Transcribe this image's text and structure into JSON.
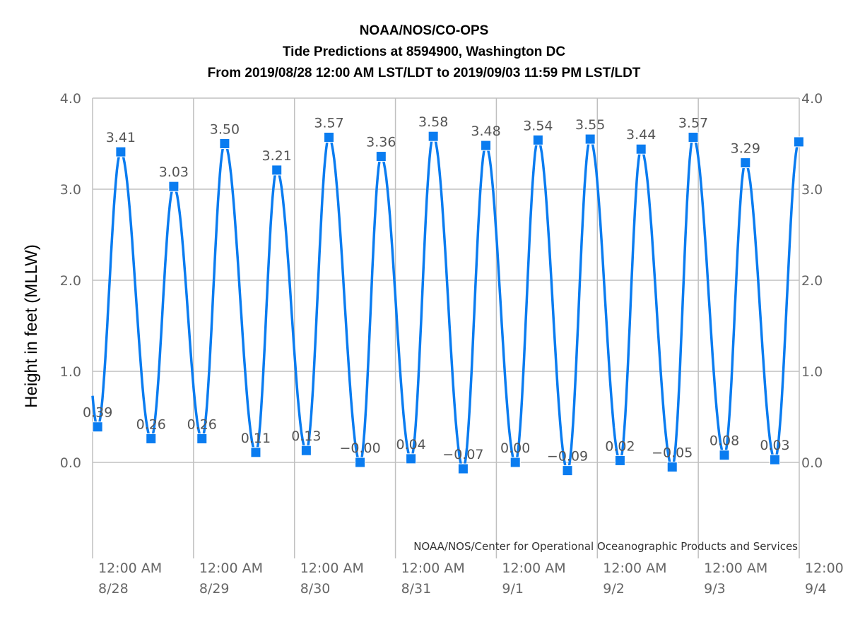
{
  "chart_data": {
    "type": "line",
    "title_lines": [
      "NOAA/NOS/CO-OPS",
      "Tide Predictions at 8594900, Washington DC",
      "From 2019/08/28 12:00 AM LST/LDT to 2019/09/03 11:59 PM LST/LDT"
    ],
    "ylabel": "Height in feet (MLLW)",
    "credit": "NOAA/NOS/Center for Operational Oceanographic Products and Services",
    "ylim": [
      -1.0,
      4.0
    ],
    "xlim": [
      "2019-08-28 00:00",
      "2019-09-04 00:00"
    ],
    "y_ticks": [
      "4.0",
      "3.0",
      "2.0",
      "1.0",
      "0.0"
    ],
    "x_ticks": [
      {
        "time": "12:00 AM",
        "date": "8/28"
      },
      {
        "time": "12:00 AM",
        "date": "8/29"
      },
      {
        "time": "12:00 AM",
        "date": "8/30"
      },
      {
        "time": "12:00 AM",
        "date": "8/31"
      },
      {
        "time": "12:00 AM",
        "date": "9/1"
      },
      {
        "time": "12:00 AM",
        "date": "9/2"
      },
      {
        "time": "12:00 AM",
        "date": "9/3"
      },
      {
        "time": "12:00",
        "date": "9/4"
      }
    ],
    "grid": true,
    "line_color": "#0a7cf0",
    "points": [
      {
        "t": "2019-08-28 01:12",
        "v": 0.39,
        "label": "0.39"
      },
      {
        "t": "2019-08-28 06:42",
        "v": 3.41,
        "label": "3.41"
      },
      {
        "t": "2019-08-28 13:54",
        "v": 0.26,
        "label": "0.26"
      },
      {
        "t": "2019-08-28 19:18",
        "v": 3.03,
        "label": "3.03"
      },
      {
        "t": "2019-08-29 02:00",
        "v": 0.26,
        "label": "0.26"
      },
      {
        "t": "2019-08-29 07:24",
        "v": 3.5,
        "label": "3.50"
      },
      {
        "t": "2019-08-29 14:48",
        "v": 0.11,
        "label": "0.11"
      },
      {
        "t": "2019-08-29 19:48",
        "v": 3.21,
        "label": "3.21"
      },
      {
        "t": "2019-08-30 02:48",
        "v": 0.13,
        "label": "0.13"
      },
      {
        "t": "2019-08-30 08:12",
        "v": 3.57,
        "label": "3.57"
      },
      {
        "t": "2019-08-30 15:36",
        "v": -0.0,
        "label": "-0.00"
      },
      {
        "t": "2019-08-30 20:36",
        "v": 3.36,
        "label": "3.36"
      },
      {
        "t": "2019-08-31 03:42",
        "v": 0.04,
        "label": "0.04"
      },
      {
        "t": "2019-08-31 09:00",
        "v": 3.58,
        "label": "3.58"
      },
      {
        "t": "2019-08-31 16:06",
        "v": -0.07,
        "label": "-0.07"
      },
      {
        "t": "2019-08-31 21:30",
        "v": 3.48,
        "label": "3.48"
      },
      {
        "t": "2019-09-01 04:30",
        "v": 0.0,
        "label": "0.00"
      },
      {
        "t": "2019-09-01 09:54",
        "v": 3.54,
        "label": "3.54"
      },
      {
        "t": "2019-09-01 16:54",
        "v": -0.09,
        "label": "-0.09"
      },
      {
        "t": "2019-09-01 22:18",
        "v": 3.55,
        "label": "3.55"
      },
      {
        "t": "2019-09-02 05:24",
        "v": 0.02,
        "label": "0.02"
      },
      {
        "t": "2019-09-02 10:24",
        "v": 3.44,
        "label": "3.44"
      },
      {
        "t": "2019-09-02 17:48",
        "v": -0.05,
        "label": "-0.05"
      },
      {
        "t": "2019-09-02 22:48",
        "v": 3.57,
        "label": "3.57"
      },
      {
        "t": "2019-09-03 06:12",
        "v": 0.08,
        "label": "0.08"
      },
      {
        "t": "2019-09-03 11:12",
        "v": 3.29,
        "label": "3.29"
      },
      {
        "t": "2019-09-03 18:12",
        "v": 0.03,
        "label": "0.03"
      },
      {
        "t": "2019-09-03 23:54",
        "v": 3.52,
        "label": ""
      }
    ]
  }
}
